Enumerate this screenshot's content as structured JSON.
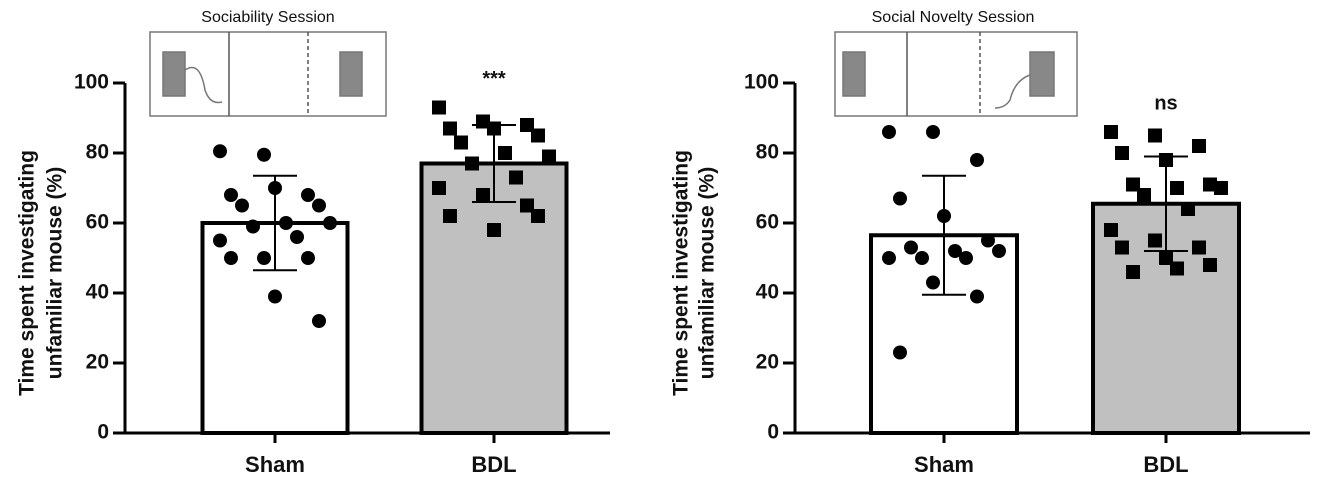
{
  "chart_data": [
    {
      "type": "bar",
      "title": "Sociability  Session",
      "ylabel": [
        "Time spent investigating",
        "unfamiliar mouse (%)"
      ],
      "categories": [
        "Sham",
        "BDL"
      ],
      "values": [
        60,
        77
      ],
      "errors": [
        13.5,
        11
      ],
      "colors": [
        "#ffffff",
        "#c0c0c0"
      ],
      "markers": [
        "circle",
        "square"
      ],
      "points": [
        [
          80.5,
          79.5,
          68,
          68,
          70,
          65,
          65,
          60,
          60,
          59,
          56,
          55,
          50,
          50,
          50,
          39,
          32
        ],
        [
          93,
          89,
          88,
          87,
          87,
          85,
          83,
          80,
          79,
          77,
          73,
          70,
          68,
          65,
          62,
          58,
          62
        ]
      ],
      "annotations": [
        "",
        "***"
      ],
      "ylim": [
        0,
        100
      ],
      "yticks": [
        0,
        20,
        40,
        60,
        80,
        100
      ]
    },
    {
      "type": "bar",
      "title": "Social Novelty Session",
      "ylabel": [
        "Time spent investigating",
        "unfamiliar mouse (%)"
      ],
      "categories": [
        "Sham",
        "BDL"
      ],
      "values": [
        56.5,
        65.5
      ],
      "errors": [
        17,
        13.5
      ],
      "colors": [
        "#ffffff",
        "#c0c0c0"
      ],
      "markers": [
        "circle",
        "square"
      ],
      "points": [
        [
          86,
          86,
          78,
          67,
          62,
          55,
          53,
          52,
          52,
          50,
          50,
          50,
          43,
          39,
          23
        ],
        [
          86,
          85,
          82,
          80,
          78,
          71,
          71,
          70,
          70,
          68,
          64,
          58,
          55,
          53,
          53,
          50,
          48,
          46,
          47
        ]
      ],
      "annotations": [
        "",
        "ns"
      ],
      "ylim": [
        0,
        100
      ],
      "yticks": [
        0,
        20,
        40,
        60,
        80,
        100
      ]
    }
  ]
}
